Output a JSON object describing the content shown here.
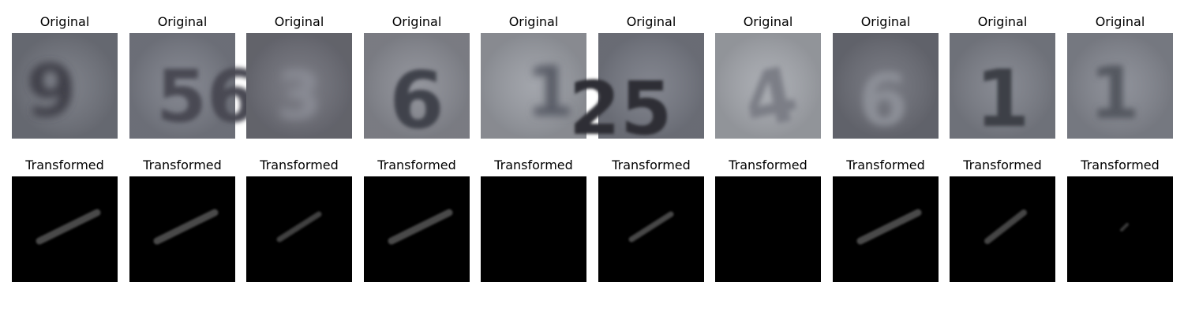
{
  "figure": {
    "rows": [
      {
        "row": "original",
        "panels": [
          {
            "title": "Original",
            "glyph": "9",
            "bg": "#73767f",
            "ink": "#3f4148"
          },
          {
            "title": "Original",
            "glyph": "56",
            "bg": "#7a7d87",
            "ink": "#484a53"
          },
          {
            "title": "Original",
            "glyph": "3",
            "bg": "#6f7079",
            "ink": "#8a8c95"
          },
          {
            "title": "Original",
            "glyph": "6",
            "bg": "#8a8c94",
            "ink": "#40424b"
          },
          {
            "title": "Original",
            "glyph": "1",
            "bg": "#9a9da4",
            "ink": "#5a5d67"
          },
          {
            "title": "Original",
            "glyph": "25",
            "bg": "#777a84",
            "ink": "#2d2e34"
          },
          {
            "title": "Original",
            "glyph": "4",
            "bg": "#a5a8ae",
            "ink": "#7b7e86"
          },
          {
            "title": "Original",
            "glyph": "6",
            "bg": "#6d6f78",
            "ink": "#8c8f97"
          },
          {
            "title": "Original",
            "glyph": "1",
            "bg": "#7d8089",
            "ink": "#3d3f47"
          },
          {
            "title": "Original",
            "glyph": "1",
            "bg": "#858891",
            "ink": "#555861"
          }
        ]
      },
      {
        "row": "transformed",
        "panels": [
          {
            "title": "Transformed",
            "stroke": "long",
            "ink": "#4a4a4a",
            "bg": "#000000"
          },
          {
            "title": "Transformed",
            "stroke": "long",
            "ink": "#4a4a4a",
            "bg": "#000000"
          },
          {
            "title": "Transformed",
            "stroke": "medium",
            "ink": "#404040",
            "bg": "#000000"
          },
          {
            "title": "Transformed",
            "stroke": "long",
            "ink": "#4a4a4a",
            "bg": "#000000"
          },
          {
            "title": "Transformed",
            "stroke": "none",
            "ink": "#000000",
            "bg": "#000000"
          },
          {
            "title": "Transformed",
            "stroke": "medium",
            "ink": "#464646",
            "bg": "#000000"
          },
          {
            "title": "Transformed",
            "stroke": "none",
            "ink": "#000000",
            "bg": "#000000"
          },
          {
            "title": "Transformed",
            "stroke": "long",
            "ink": "#4a4a4a",
            "bg": "#000000"
          },
          {
            "title": "Transformed",
            "stroke": "short",
            "ink": "#444444",
            "bg": "#000000"
          },
          {
            "title": "Transformed",
            "stroke": "tiny",
            "ink": "#3a3a3a",
            "bg": "#000000"
          }
        ]
      }
    ]
  }
}
